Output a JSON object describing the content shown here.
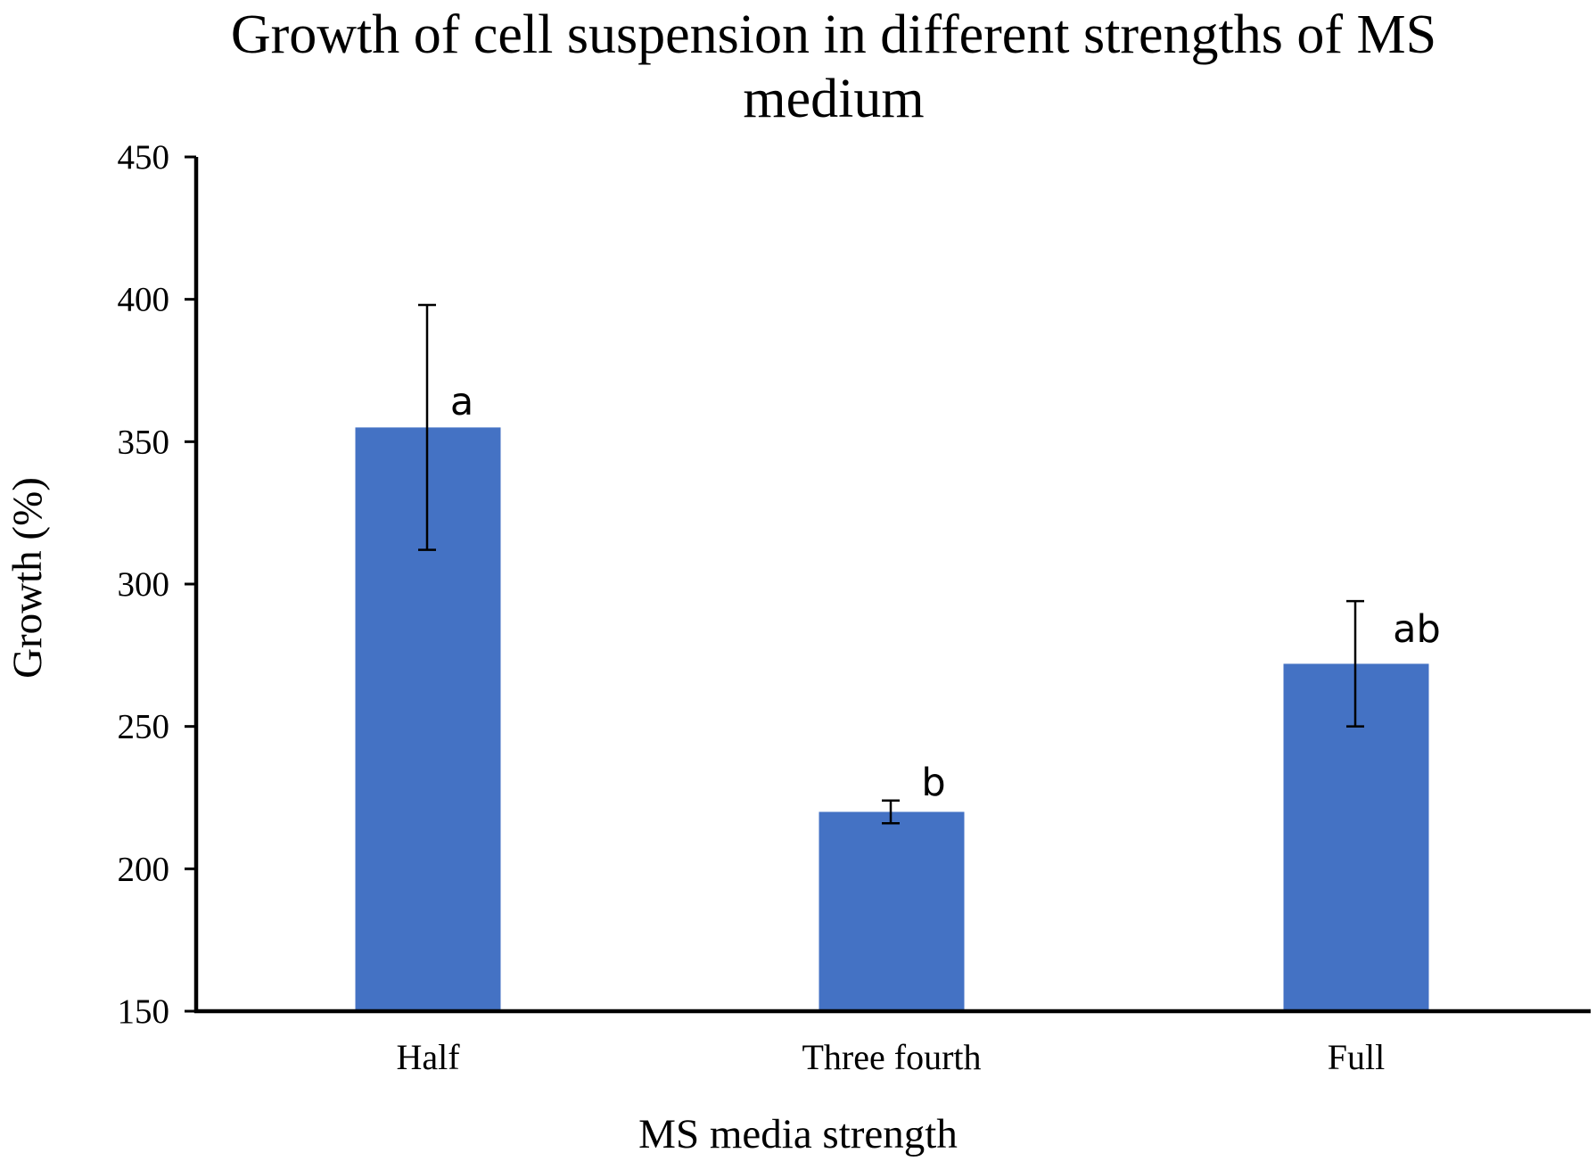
{
  "chart_data": {
    "type": "bar",
    "title_lines": [
      "Growth of cell suspension in different strengths of MS",
      "medium"
    ],
    "xlabel": "MS media strength",
    "ylabel": "Growth (%)",
    "categories": [
      "Half",
      "Three fourth",
      "Full"
    ],
    "values": [
      355,
      220,
      272
    ],
    "error_low": [
      312,
      216,
      250
    ],
    "error_high": [
      398,
      224,
      294
    ],
    "significance_labels": [
      "a",
      "b",
      "ab"
    ],
    "ylim": [
      150,
      450
    ],
    "yticks": [
      150,
      200,
      250,
      300,
      350,
      400,
      450
    ],
    "ytick_labels": [
      "150",
      "200",
      "250",
      "300",
      "350",
      "400",
      "450"
    ],
    "bar_color": "#4472C4",
    "grid": false,
    "legend": "none"
  }
}
